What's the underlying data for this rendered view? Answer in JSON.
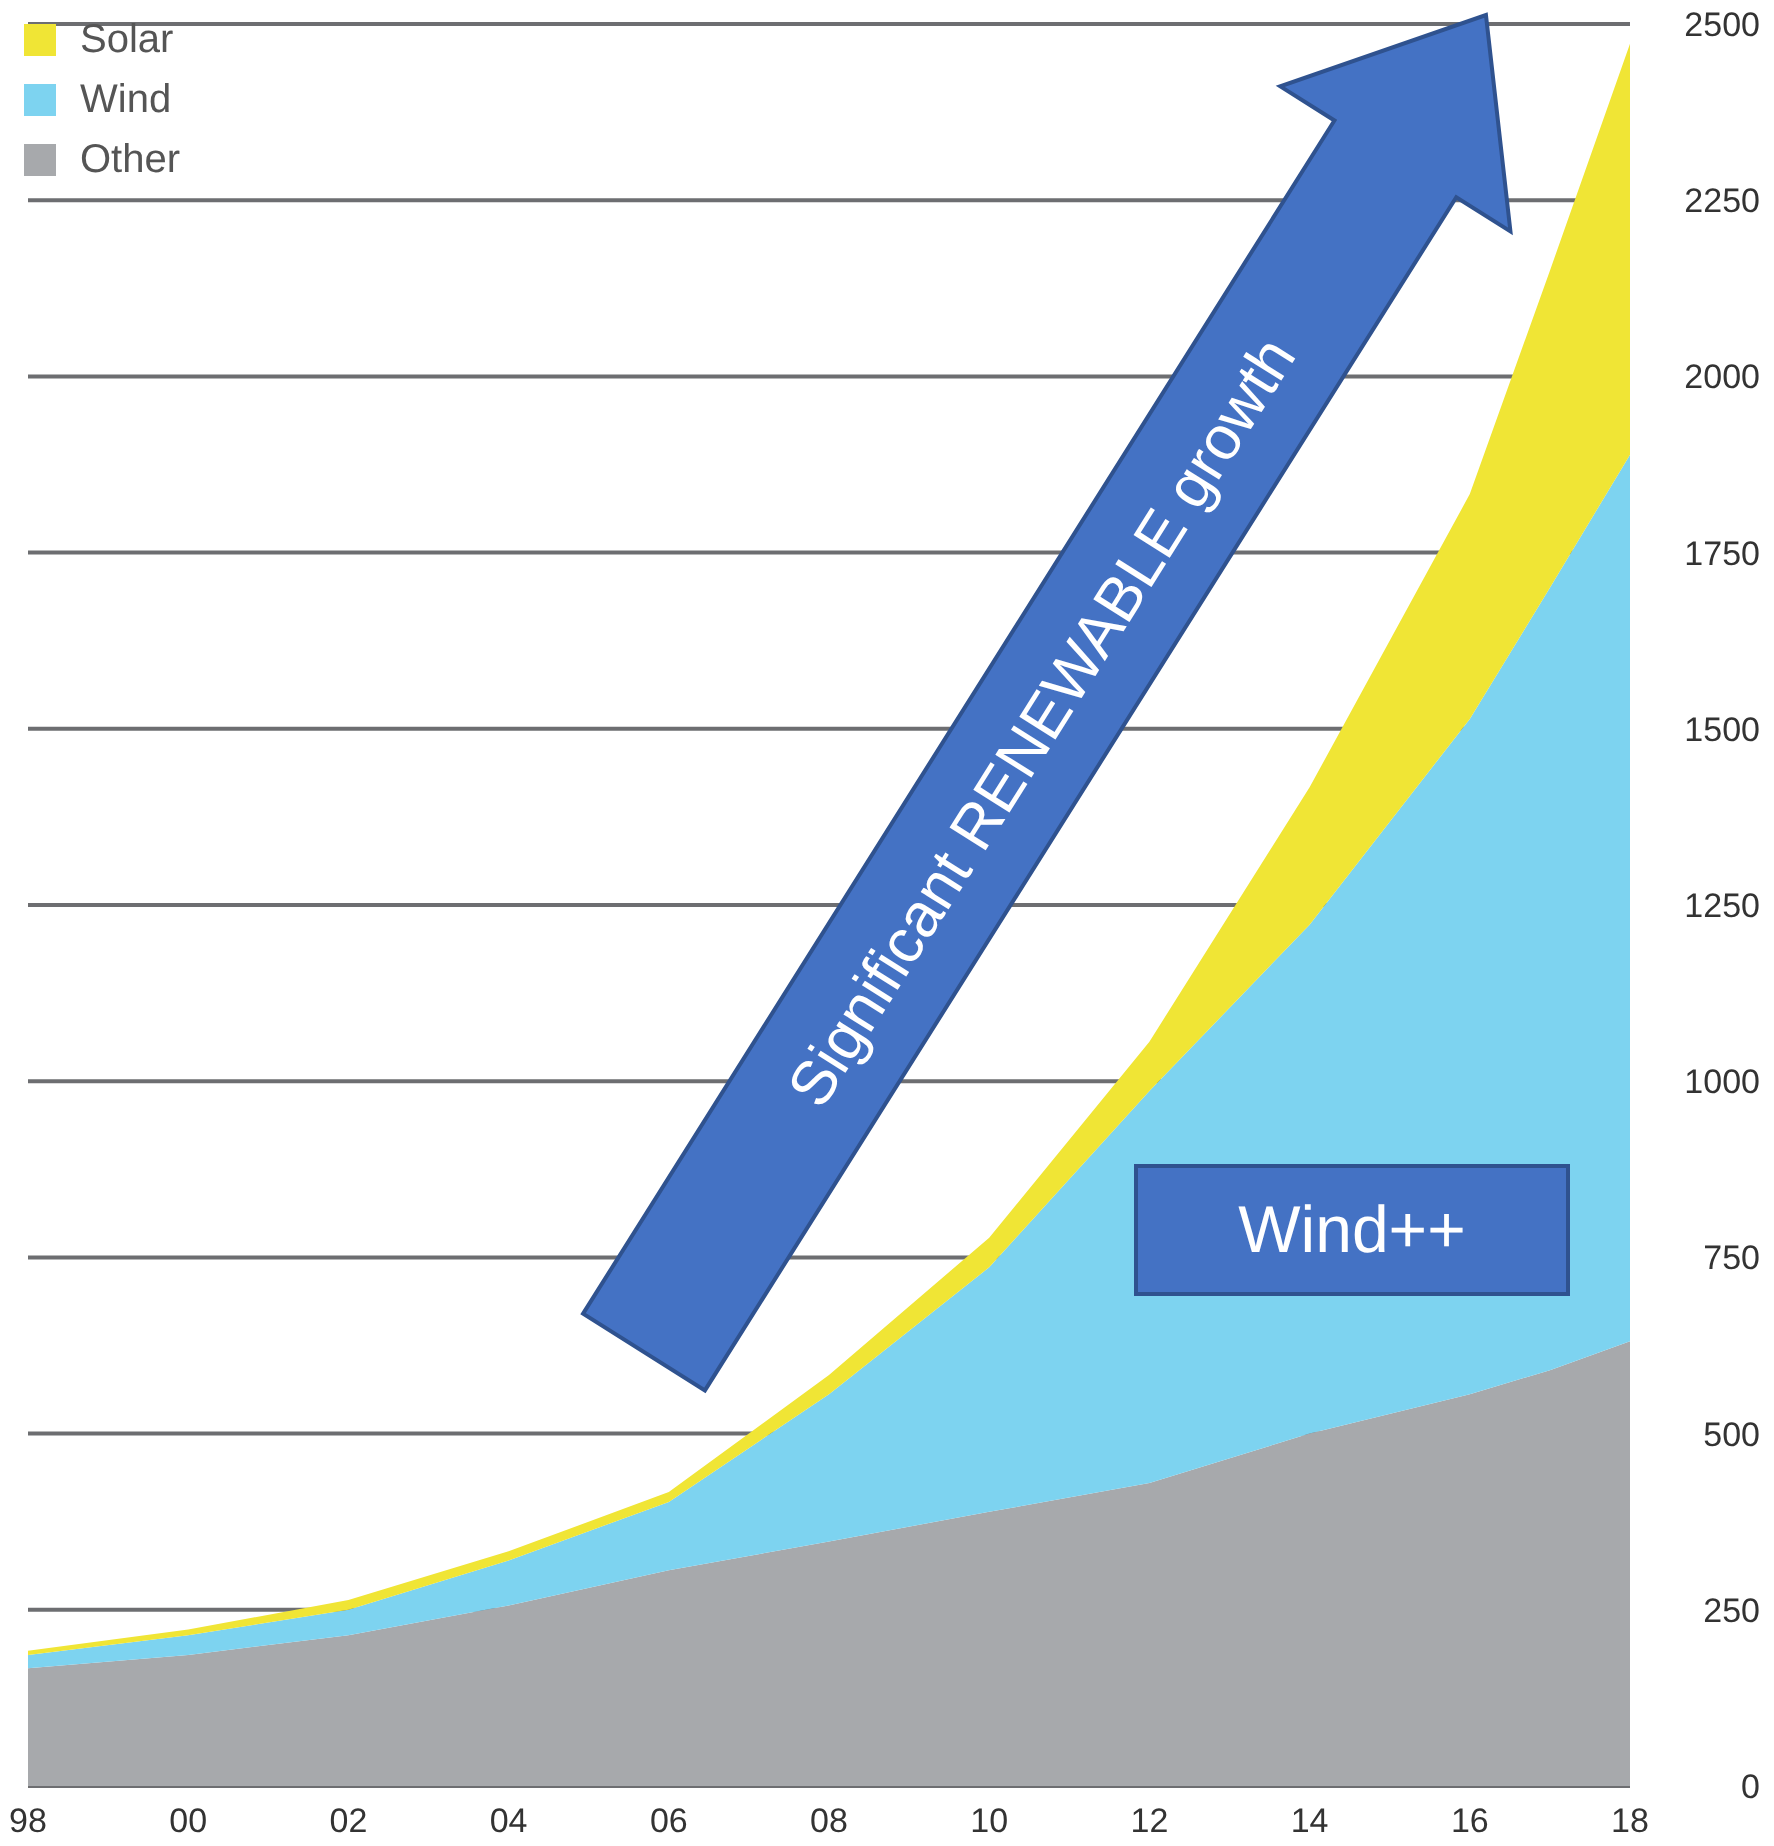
{
  "chart_data": {
    "type": "area",
    "stacked": true,
    "x": [
      1998,
      2000,
      2002,
      2004,
      2006,
      2008,
      2010,
      2012,
      2014,
      2016,
      2017,
      2018
    ],
    "series": [
      {
        "name": "Other",
        "color": "#a7a9ac",
        "values": [
          167,
          186,
          214,
          256,
          306,
          347,
          389,
          430,
          500,
          556,
          590,
          631
        ]
      },
      {
        "name": "Wind",
        "color": "#7dd3f0",
        "values": [
          19,
          28,
          36,
          64,
          97,
          209,
          347,
          556,
          722,
          958,
          1110,
          1258
        ]
      },
      {
        "name": "Solar",
        "color": "#f0e535",
        "values": [
          6,
          8,
          14,
          13,
          14,
          27,
          42,
          70,
          195,
          319,
          450,
          583
        ]
      }
    ],
    "xlim": [
      1998,
      2018
    ],
    "xticks": [
      {
        "value": 1998,
        "label": "98"
      },
      {
        "value": 2000,
        "label": "00"
      },
      {
        "value": 2002,
        "label": "02"
      },
      {
        "value": 2004,
        "label": "04"
      },
      {
        "value": 2006,
        "label": "06"
      },
      {
        "value": 2008,
        "label": "08"
      },
      {
        "value": 2010,
        "label": "10"
      },
      {
        "value": 2012,
        "label": "12"
      },
      {
        "value": 2014,
        "label": "14"
      },
      {
        "value": 2016,
        "label": "16"
      },
      {
        "value": 2018,
        "label": "18"
      }
    ],
    "ylim": [
      0,
      2500
    ],
    "yticks": [
      0,
      250,
      500,
      750,
      1000,
      1250,
      1500,
      1750,
      2000,
      2250,
      2500
    ],
    "grid": "y",
    "legend": "top left",
    "annotations": [
      "Significant RENEWABLE growth",
      "Wind++"
    ]
  }
}
